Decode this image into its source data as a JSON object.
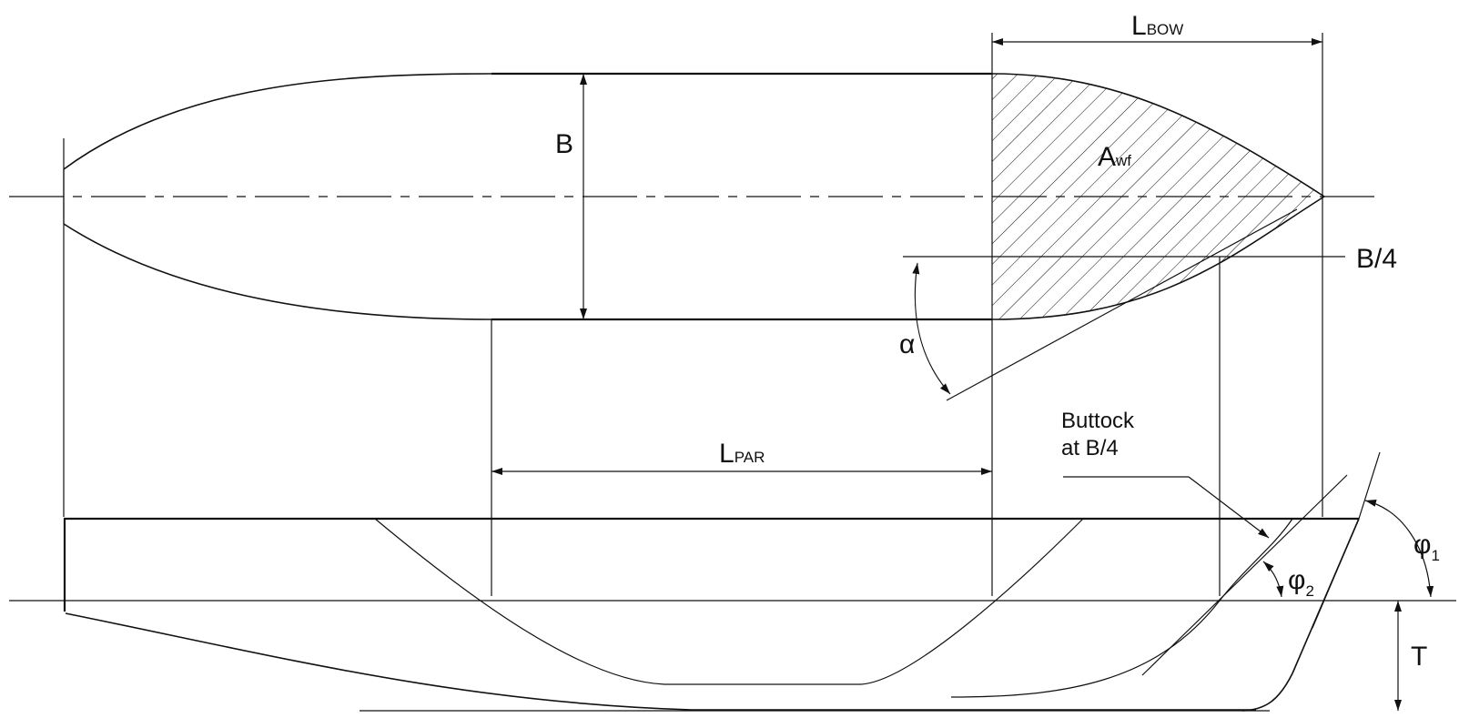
{
  "labels": {
    "bow_length_main": "L",
    "bow_length_sub": "BOW",
    "beam": "B",
    "waterplane_area_main": "A",
    "waterplane_area_sub": "wf",
    "quarter_beam": "B/4",
    "entrance_angle": "α",
    "parallel_length_main": "L",
    "parallel_length_sub": "PAR",
    "buttock_line1": "Buttock",
    "buttock_line2": "at B/4",
    "phi1_main": "φ",
    "phi1_sub": "1",
    "phi2_main": "φ",
    "phi2_sub": "2",
    "draft": "T"
  },
  "colors": {
    "line": "#111111",
    "background": "#ffffff"
  }
}
